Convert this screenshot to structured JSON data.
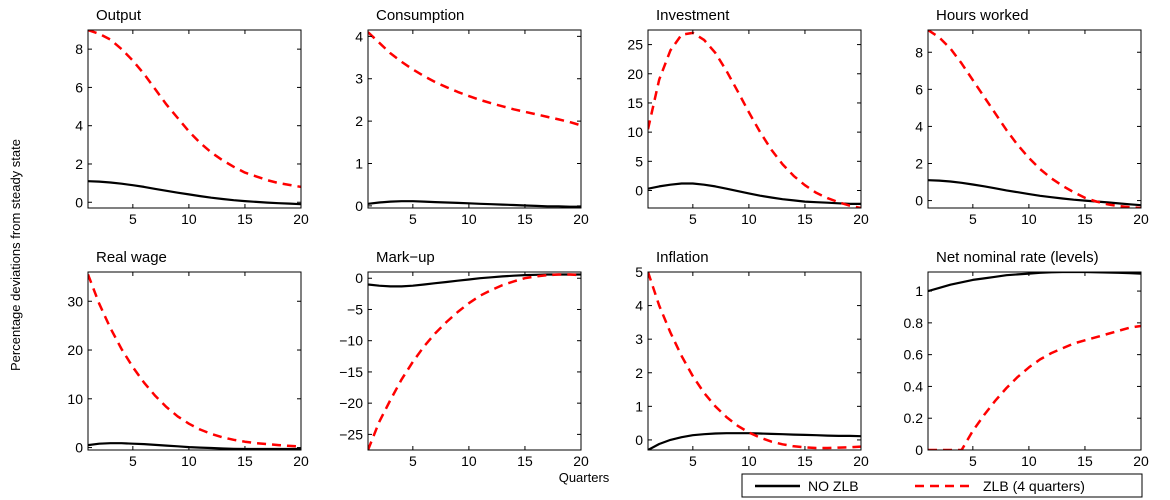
{
  "figure": {
    "ylabel": "Percentage deviations from steady state",
    "xlabel": "Quarters"
  },
  "legend": {
    "placement": "bottom-right",
    "items": [
      {
        "label": "NO ZLB",
        "color": "#000000",
        "dash": "solid"
      },
      {
        "label": "ZLB (4 quarters)",
        "color": "#ff0000",
        "dash": "dashed"
      }
    ]
  },
  "chart_data": [
    {
      "type": "line",
      "title": "Output",
      "xlim": [
        1,
        20
      ],
      "ylim": [
        -0.3,
        9
      ],
      "xticks": [
        5,
        10,
        15,
        20
      ],
      "yticks": [
        0,
        2,
        4,
        6,
        8
      ],
      "series": [
        {
          "name": "NO ZLB",
          "x": [
            1,
            2,
            3,
            4,
            5,
            6,
            7,
            8,
            9,
            10,
            11,
            12,
            13,
            14,
            15,
            16,
            17,
            18,
            19,
            20
          ],
          "values": [
            1.1,
            1.08,
            1.03,
            0.97,
            0.89,
            0.8,
            0.7,
            0.6,
            0.5,
            0.41,
            0.32,
            0.24,
            0.17,
            0.11,
            0.06,
            0.02,
            -0.02,
            -0.05,
            -0.07,
            -0.1
          ]
        },
        {
          "name": "ZLB (4 quarters)",
          "x": [
            1,
            2,
            3,
            4,
            5,
            6,
            7,
            8,
            9,
            10,
            11,
            12,
            13,
            14,
            15,
            16,
            17,
            18,
            19,
            20
          ],
          "values": [
            9.0,
            8.8,
            8.5,
            8.0,
            7.4,
            6.7,
            5.9,
            5.1,
            4.4,
            3.7,
            3.1,
            2.6,
            2.2,
            1.85,
            1.55,
            1.35,
            1.15,
            1.0,
            0.9,
            0.8
          ]
        }
      ]
    },
    {
      "type": "line",
      "title": "Consumption",
      "xlim": [
        1,
        20
      ],
      "ylim": [
        -0.05,
        4.15
      ],
      "xticks": [
        5,
        10,
        15,
        20
      ],
      "yticks": [
        0,
        1,
        2,
        3,
        4
      ],
      "series": [
        {
          "name": "NO ZLB",
          "x": [
            1,
            2,
            3,
            4,
            5,
            6,
            7,
            8,
            9,
            10,
            11,
            12,
            13,
            14,
            15,
            16,
            17,
            18,
            19,
            20
          ],
          "values": [
            0.05,
            0.08,
            0.1,
            0.11,
            0.11,
            0.1,
            0.09,
            0.08,
            0.07,
            0.06,
            0.05,
            0.04,
            0.03,
            0.02,
            0.01,
            0.0,
            -0.01,
            -0.01,
            -0.02,
            -0.02
          ]
        },
        {
          "name": "ZLB (4 quarters)",
          "x": [
            1,
            2,
            3,
            4,
            5,
            6,
            7,
            8,
            9,
            10,
            11,
            12,
            13,
            14,
            15,
            16,
            17,
            18,
            19,
            20
          ],
          "values": [
            4.1,
            3.85,
            3.6,
            3.4,
            3.22,
            3.06,
            2.92,
            2.8,
            2.69,
            2.59,
            2.5,
            2.42,
            2.35,
            2.28,
            2.22,
            2.16,
            2.1,
            2.04,
            1.98,
            1.9
          ]
        }
      ]
    },
    {
      "type": "line",
      "title": "Investment",
      "xlim": [
        1,
        20
      ],
      "ylim": [
        -3,
        27.5
      ],
      "xticks": [
        5,
        10,
        15,
        20
      ],
      "yticks": [
        0,
        5,
        10,
        15,
        20,
        25
      ],
      "series": [
        {
          "name": "NO ZLB",
          "x": [
            1,
            2,
            3,
            4,
            5,
            6,
            7,
            8,
            9,
            10,
            11,
            12,
            13,
            14,
            15,
            16,
            17,
            18,
            19,
            20
          ],
          "values": [
            0.3,
            0.7,
            1.0,
            1.2,
            1.2,
            1.0,
            0.7,
            0.3,
            -0.1,
            -0.5,
            -0.9,
            -1.2,
            -1.5,
            -1.7,
            -1.9,
            -2.0,
            -2.1,
            -2.2,
            -2.3,
            -2.3
          ]
        },
        {
          "name": "ZLB (4 quarters)",
          "x": [
            1,
            2,
            3,
            4,
            5,
            6,
            7,
            8,
            9,
            10,
            11,
            12,
            13,
            14,
            15,
            16,
            17,
            18,
            19,
            20
          ],
          "values": [
            10.5,
            19.0,
            24.0,
            26.7,
            27.0,
            25.8,
            23.6,
            20.5,
            17.0,
            13.4,
            10.0,
            7.0,
            4.5,
            2.5,
            0.9,
            -0.4,
            -1.3,
            -2.0,
            -2.6,
            -3.0
          ]
        }
      ]
    },
    {
      "type": "line",
      "title": "Hours worked",
      "xlim": [
        1,
        20
      ],
      "ylim": [
        -0.4,
        9.2
      ],
      "xticks": [
        5,
        10,
        15,
        20
      ],
      "yticks": [
        0,
        2,
        4,
        6,
        8
      ],
      "series": [
        {
          "name": "NO ZLB",
          "x": [
            1,
            2,
            3,
            4,
            5,
            6,
            7,
            8,
            9,
            10,
            11,
            12,
            13,
            14,
            15,
            16,
            17,
            18,
            19,
            20
          ],
          "values": [
            1.1,
            1.08,
            1.03,
            0.96,
            0.87,
            0.77,
            0.66,
            0.55,
            0.45,
            0.35,
            0.26,
            0.18,
            0.11,
            0.05,
            0.0,
            -0.05,
            -0.1,
            -0.15,
            -0.2,
            -0.25
          ]
        },
        {
          "name": "ZLB (4 quarters)",
          "x": [
            1,
            2,
            3,
            4,
            5,
            6,
            7,
            8,
            9,
            10,
            11,
            12,
            13,
            14,
            15,
            16,
            17,
            18,
            19,
            20
          ],
          "values": [
            9.2,
            8.8,
            8.2,
            7.4,
            6.5,
            5.6,
            4.7,
            3.8,
            3.0,
            2.3,
            1.7,
            1.2,
            0.8,
            0.45,
            0.15,
            -0.05,
            -0.2,
            -0.3,
            -0.35,
            -0.4
          ]
        }
      ]
    },
    {
      "type": "line",
      "title": "Real wage",
      "xlim": [
        1,
        20
      ],
      "ylim": [
        -0.5,
        36
      ],
      "xticks": [
        5,
        10,
        15,
        20
      ],
      "yticks": [
        0,
        10,
        20,
        30
      ],
      "series": [
        {
          "name": "NO ZLB",
          "x": [
            1,
            2,
            3,
            4,
            5,
            6,
            7,
            8,
            9,
            10,
            11,
            12,
            13,
            14,
            15,
            16,
            17,
            18,
            19,
            20
          ],
          "values": [
            0.5,
            0.8,
            0.9,
            0.9,
            0.8,
            0.7,
            0.55,
            0.4,
            0.25,
            0.1,
            0.0,
            -0.1,
            -0.2,
            -0.25,
            -0.3,
            -0.3,
            -0.3,
            -0.3,
            -0.3,
            -0.3
          ]
        },
        {
          "name": "ZLB (4 quarters)",
          "x": [
            1,
            2,
            3,
            4,
            5,
            6,
            7,
            8,
            9,
            10,
            11,
            12,
            13,
            14,
            15,
            16,
            17,
            18,
            19,
            20
          ],
          "values": [
            35.5,
            29.5,
            24.5,
            20.2,
            16.5,
            13.3,
            10.6,
            8.3,
            6.4,
            4.9,
            3.7,
            2.8,
            2.1,
            1.6,
            1.2,
            0.9,
            0.7,
            0.5,
            0.35,
            0.2
          ]
        }
      ]
    },
    {
      "type": "line",
      "title": "Mark−up",
      "xlim": [
        1,
        20
      ],
      "ylim": [
        -27.5,
        1
      ],
      "xticks": [
        5,
        10,
        15,
        20
      ],
      "yticks": [
        0,
        -5,
        -10,
        -15,
        -20,
        -25
      ],
      "series": [
        {
          "name": "NO ZLB",
          "x": [
            1,
            2,
            3,
            4,
            5,
            6,
            7,
            8,
            9,
            10,
            11,
            12,
            13,
            14,
            15,
            16,
            17,
            18,
            19,
            20
          ],
          "values": [
            -1.0,
            -1.2,
            -1.3,
            -1.3,
            -1.2,
            -1.0,
            -0.8,
            -0.6,
            -0.4,
            -0.2,
            0.0,
            0.15,
            0.3,
            0.4,
            0.5,
            0.55,
            0.6,
            0.6,
            0.6,
            0.6
          ]
        },
        {
          "name": "ZLB (4 quarters)",
          "x": [
            1,
            2,
            3,
            4,
            5,
            6,
            7,
            8,
            9,
            10,
            11,
            12,
            13,
            14,
            15,
            16,
            17,
            18,
            19,
            20
          ],
          "values": [
            -27.5,
            -23.0,
            -19.5,
            -16.2,
            -13.4,
            -10.9,
            -8.8,
            -7.0,
            -5.4,
            -4.0,
            -2.8,
            -1.9,
            -1.1,
            -0.5,
            0.0,
            0.3,
            0.5,
            0.6,
            0.6,
            0.5
          ]
        }
      ]
    },
    {
      "type": "line",
      "title": "Inflation",
      "xlim": [
        1,
        20
      ],
      "ylim": [
        -0.3,
        5
      ],
      "xticks": [
        5,
        10,
        15,
        20
      ],
      "yticks": [
        0,
        1,
        2,
        3,
        4,
        5
      ],
      "series": [
        {
          "name": "NO ZLB",
          "x": [
            1,
            2,
            3,
            4,
            5,
            6,
            7,
            8,
            9,
            10,
            11,
            12,
            13,
            14,
            15,
            16,
            17,
            18,
            19,
            20
          ],
          "values": [
            -0.3,
            -0.12,
            0.0,
            0.08,
            0.14,
            0.17,
            0.19,
            0.2,
            0.2,
            0.2,
            0.19,
            0.18,
            0.17,
            0.16,
            0.15,
            0.14,
            0.13,
            0.12,
            0.12,
            0.11
          ]
        },
        {
          "name": "ZLB (4 quarters)",
          "x": [
            1,
            2,
            3,
            4,
            5,
            6,
            7,
            8,
            9,
            10,
            11,
            12,
            13,
            14,
            15,
            16,
            17,
            18,
            19,
            20
          ],
          "values": [
            5.0,
            4.0,
            3.2,
            2.5,
            1.9,
            1.4,
            1.0,
            0.68,
            0.42,
            0.22,
            0.07,
            -0.05,
            -0.13,
            -0.19,
            -0.22,
            -0.24,
            -0.24,
            -0.23,
            -0.22,
            -0.2
          ]
        }
      ]
    },
    {
      "type": "line",
      "title": "Net nominal rate (levels)",
      "xlim": [
        1,
        20
      ],
      "ylim": [
        0,
        1.12
      ],
      "xticks": [
        5,
        10,
        15,
        20
      ],
      "yticks": [
        0,
        0.2,
        0.4,
        0.6,
        0.8,
        1
      ],
      "series": [
        {
          "name": "NO ZLB",
          "x": [
            1,
            2,
            3,
            4,
            5,
            6,
            7,
            8,
            9,
            10,
            11,
            12,
            13,
            14,
            15,
            16,
            17,
            18,
            19,
            20
          ],
          "values": [
            1.0,
            1.02,
            1.04,
            1.055,
            1.07,
            1.08,
            1.09,
            1.1,
            1.105,
            1.11,
            1.115,
            1.118,
            1.12,
            1.12,
            1.12,
            1.118,
            1.117,
            1.115,
            1.113,
            1.11
          ]
        },
        {
          "name": "ZLB (4 quarters)",
          "x": [
            1,
            2,
            3,
            4,
            5,
            6,
            7,
            8,
            9,
            10,
            11,
            12,
            13,
            14,
            15,
            16,
            17,
            18,
            19,
            20
          ],
          "values": [
            0,
            0,
            0,
            0,
            0.12,
            0.22,
            0.31,
            0.39,
            0.46,
            0.52,
            0.57,
            0.61,
            0.64,
            0.67,
            0.69,
            0.71,
            0.73,
            0.75,
            0.77,
            0.78
          ]
        }
      ]
    }
  ]
}
